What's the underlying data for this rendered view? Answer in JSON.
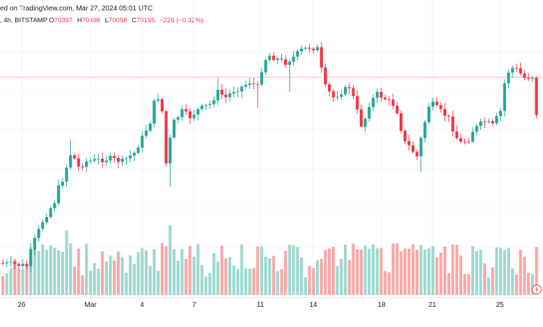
{
  "header": {
    "published": "ed on TradingView.com, Mar 27, 2024 05:01 UTC",
    "symbol_line": ", 4h, BITSTAMP",
    "o_label": "O",
    "o_value": "70397",
    "h_label": "H",
    "h_value": "70498",
    "l_label": "L",
    "l_value": "70058",
    "c_label": "C",
    "c_value": "70155",
    "change": "−226 (−0.32%)"
  },
  "colors": {
    "up": "#26a69a",
    "down": "#f23645",
    "up_volume": "#9fd8d0",
    "down_volume": "#f7a9a7",
    "grid": "#f0f3fa",
    "price_line": "#f7b3b3"
  },
  "chart_data": {
    "type": "candlestick",
    "interval": "4h",
    "exchange": "BITSTAMP",
    "x_axis_labels": [
      "26",
      "Mar",
      "4",
      "7",
      "11",
      "14",
      "18",
      "21",
      "25"
    ],
    "last_close": 70155,
    "price_scale_visible": false,
    "grid": true,
    "volume_panel": true
  }
}
